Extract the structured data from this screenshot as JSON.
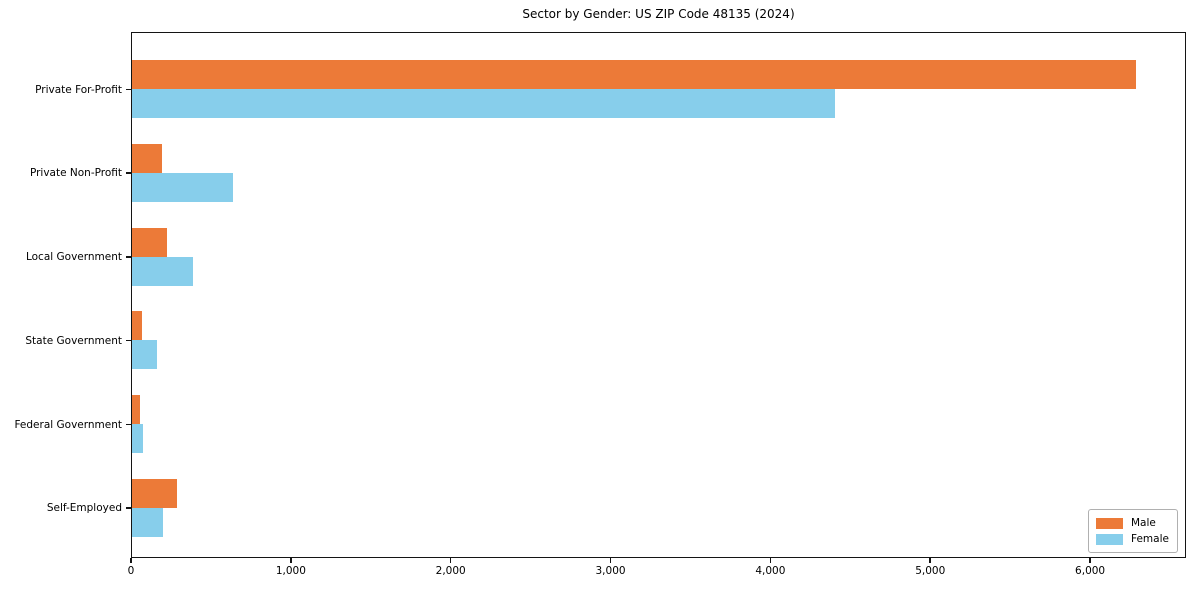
{
  "chart_data": {
    "type": "bar",
    "orientation": "horizontal",
    "title": "Sector by Gender: US ZIP Code 48135 (2024)",
    "categories": [
      "Private For-Profit",
      "Private Non-Profit",
      "Local Government",
      "State Government",
      "Federal Government",
      "Self-Employed"
    ],
    "series": [
      {
        "name": "Male",
        "color": "#ec7a38",
        "values": [
          6280,
          190,
          220,
          60,
          50,
          280
        ]
      },
      {
        "name": "Female",
        "color": "#87ceeb",
        "values": [
          4400,
          630,
          380,
          155,
          70,
          195
        ]
      }
    ],
    "xlabel": "",
    "ylabel": "",
    "xlim": [
      0,
      6600
    ],
    "x_ticks": [
      {
        "value": 0,
        "label": "0"
      },
      {
        "value": 1000,
        "label": "1,000"
      },
      {
        "value": 2000,
        "label": "2,000"
      },
      {
        "value": 3000,
        "label": "3,000"
      },
      {
        "value": 4000,
        "label": "4,000"
      },
      {
        "value": 5000,
        "label": "5,000"
      },
      {
        "value": 6000,
        "label": "6,000"
      }
    ],
    "grid": false,
    "legend_position": "lower right"
  }
}
